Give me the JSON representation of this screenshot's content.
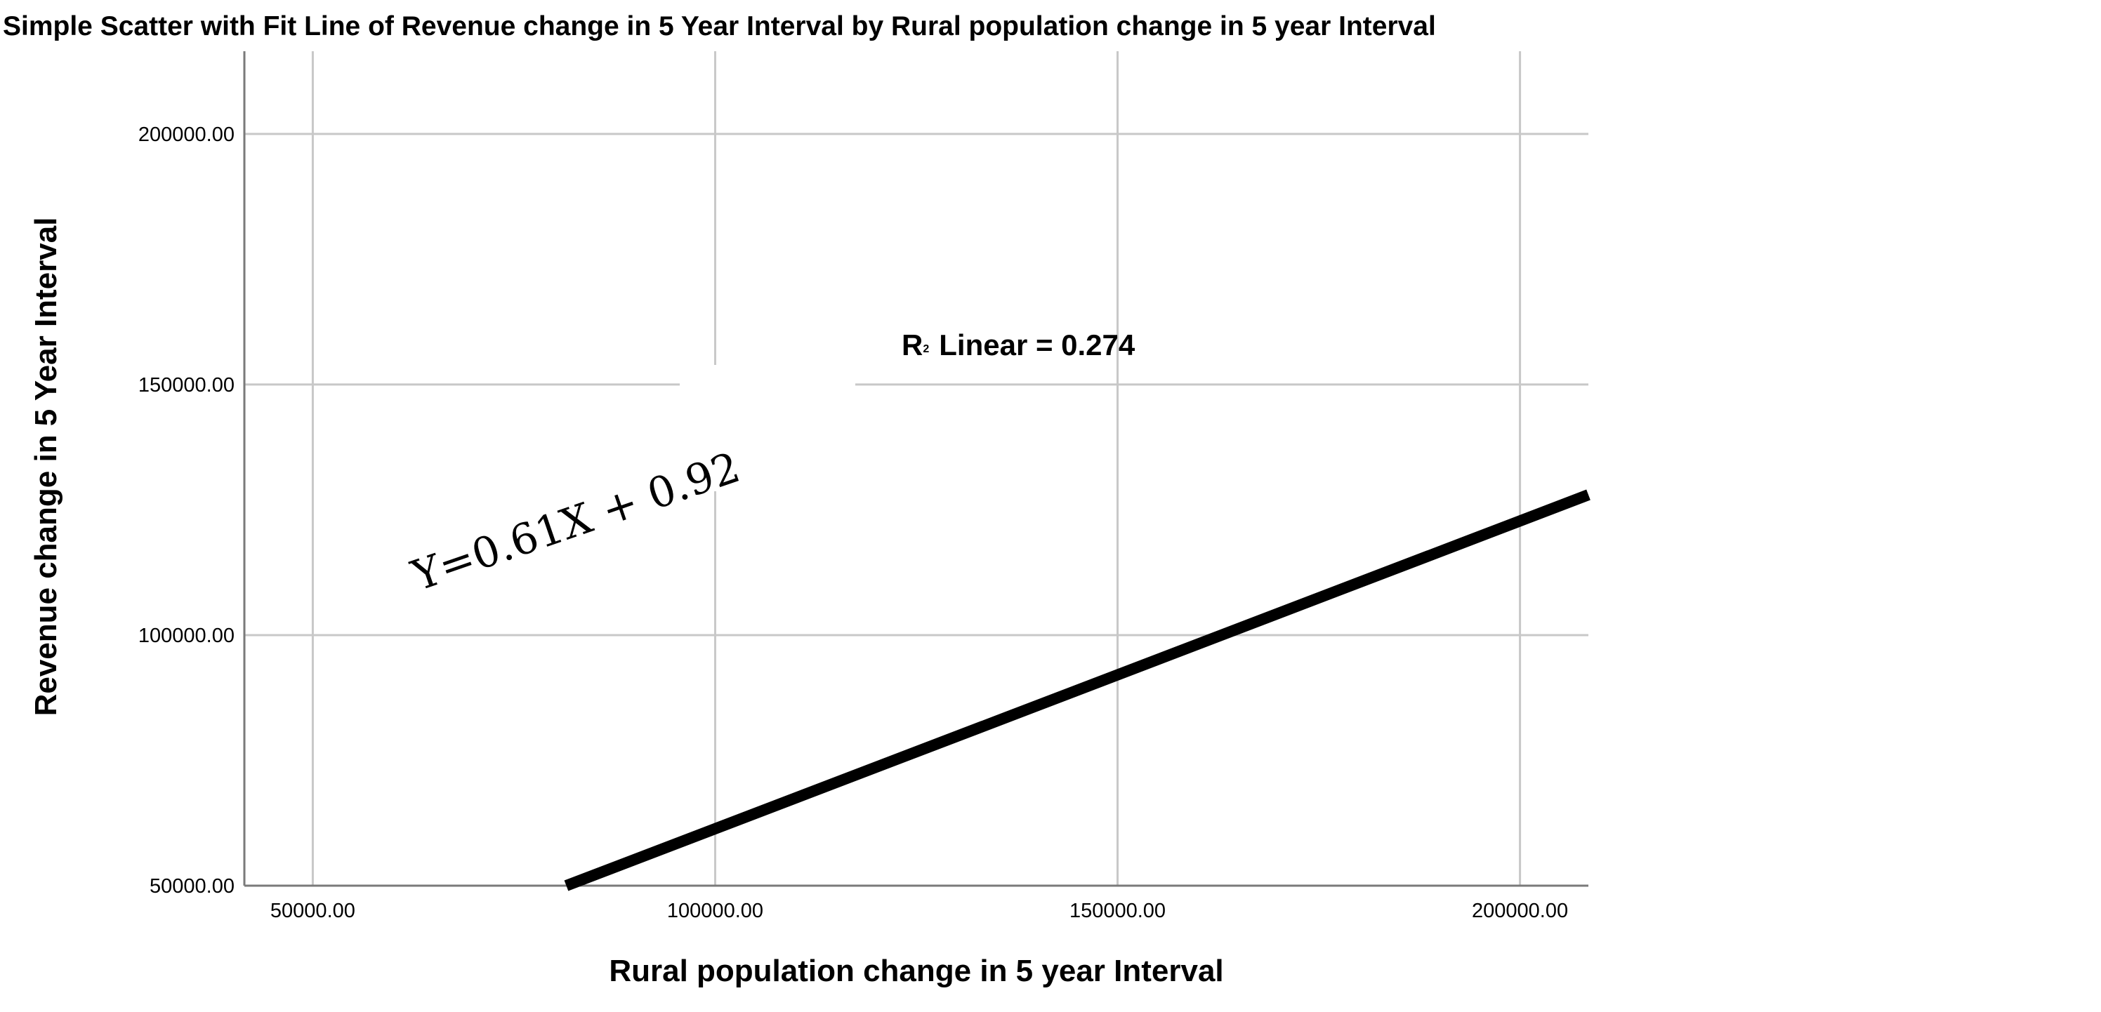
{
  "chart_data": {
    "type": "scatter",
    "title": "Simple Scatter with Fit Line of Revenue change in 5 Year Interval by Rural population change in 5 year Interval",
    "xlabel": "Rural population change in 5 year Interval",
    "ylabel": "Revenue change in 5 Year Interval",
    "xlim": [
      41500,
      208500
    ],
    "ylim": [
      50000,
      216500
    ],
    "x_ticks": [
      50000,
      100000,
      150000,
      200000
    ],
    "x_tick_labels": [
      "50000.00",
      "100000.00",
      "150000.00",
      "200000.00"
    ],
    "y_ticks": [
      50000,
      100000,
      150000,
      200000
    ],
    "y_tick_labels": [
      "50000.00",
      "100000.00",
      "150000.00",
      "200000.00"
    ],
    "grid": true,
    "fit_line": {
      "x": [
        81500,
        208500
      ],
      "y": [
        50000,
        128000
      ]
    },
    "annotations": {
      "r2_label": "R",
      "r2_superscript": "2",
      "r2_text": "Linear = 0.274",
      "equation": "Y=0.61X + 0.92"
    }
  }
}
